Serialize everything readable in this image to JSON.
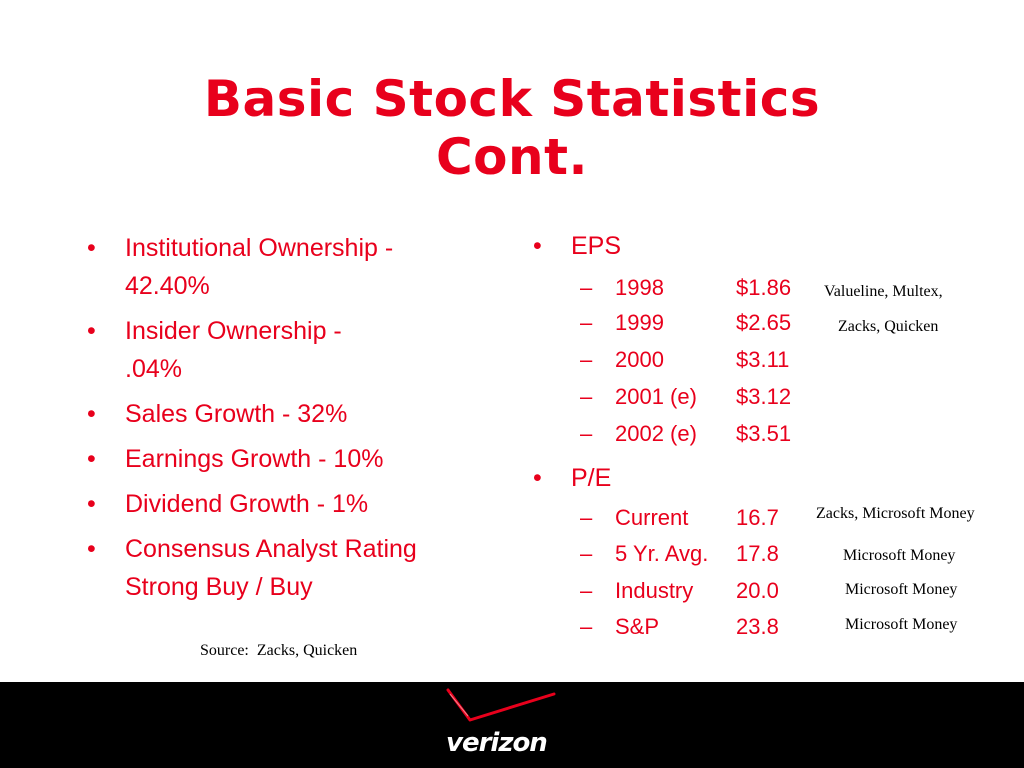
{
  "title": {
    "line1": "Basic Stock Statistics",
    "line2": "Cont."
  },
  "left_bullets": [
    {
      "line1": "Institutional Ownership -",
      "line2": "42.40%"
    },
    {
      "line1": "Insider Ownership -",
      "line2": ".04%"
    },
    {
      "line1": "Sales Growth - 32%",
      "line2": ""
    },
    {
      "line1": "Earnings Growth - 10%",
      "line2": ""
    },
    {
      "line1": "Dividend Growth - 1%",
      "line2": ""
    },
    {
      "line1": "Consensus Analyst Rating",
      "line2": "Strong Buy / Buy"
    }
  ],
  "bullet_glyph": "•",
  "dash_glyph": "–",
  "source": "Source:  Zacks, Quicken",
  "eps": {
    "label": "EPS",
    "rows": [
      {
        "label": "1998",
        "value": "$1.86"
      },
      {
        "label": "1999",
        "value": "$2.65"
      },
      {
        "label": "2000",
        "value": "$3.11"
      },
      {
        "label": "2001 (e)",
        "value": "$3.12"
      },
      {
        "label": "2002 (e)",
        "value": "$3.51"
      }
    ],
    "source_line1": "Valueline, Multex,",
    "source_line2": "Zacks, Quicken"
  },
  "pe": {
    "label": "P/E",
    "rows": [
      {
        "label": "Current",
        "value": "16.7",
        "source": "Zacks, Microsoft Money"
      },
      {
        "label": "5 Yr. Avg.",
        "value": "17.8",
        "source": "Microsoft Money"
      },
      {
        "label": "Industry",
        "value": "20.0",
        "source": "Microsoft Money"
      },
      {
        "label": "S&P",
        "value": "23.8",
        "source": "Microsoft Money"
      }
    ]
  },
  "logo": {
    "text": "verizon",
    "accent_color": "#e8001c"
  },
  "colors": {
    "accent": "#e8001c",
    "footer": "#000000"
  }
}
